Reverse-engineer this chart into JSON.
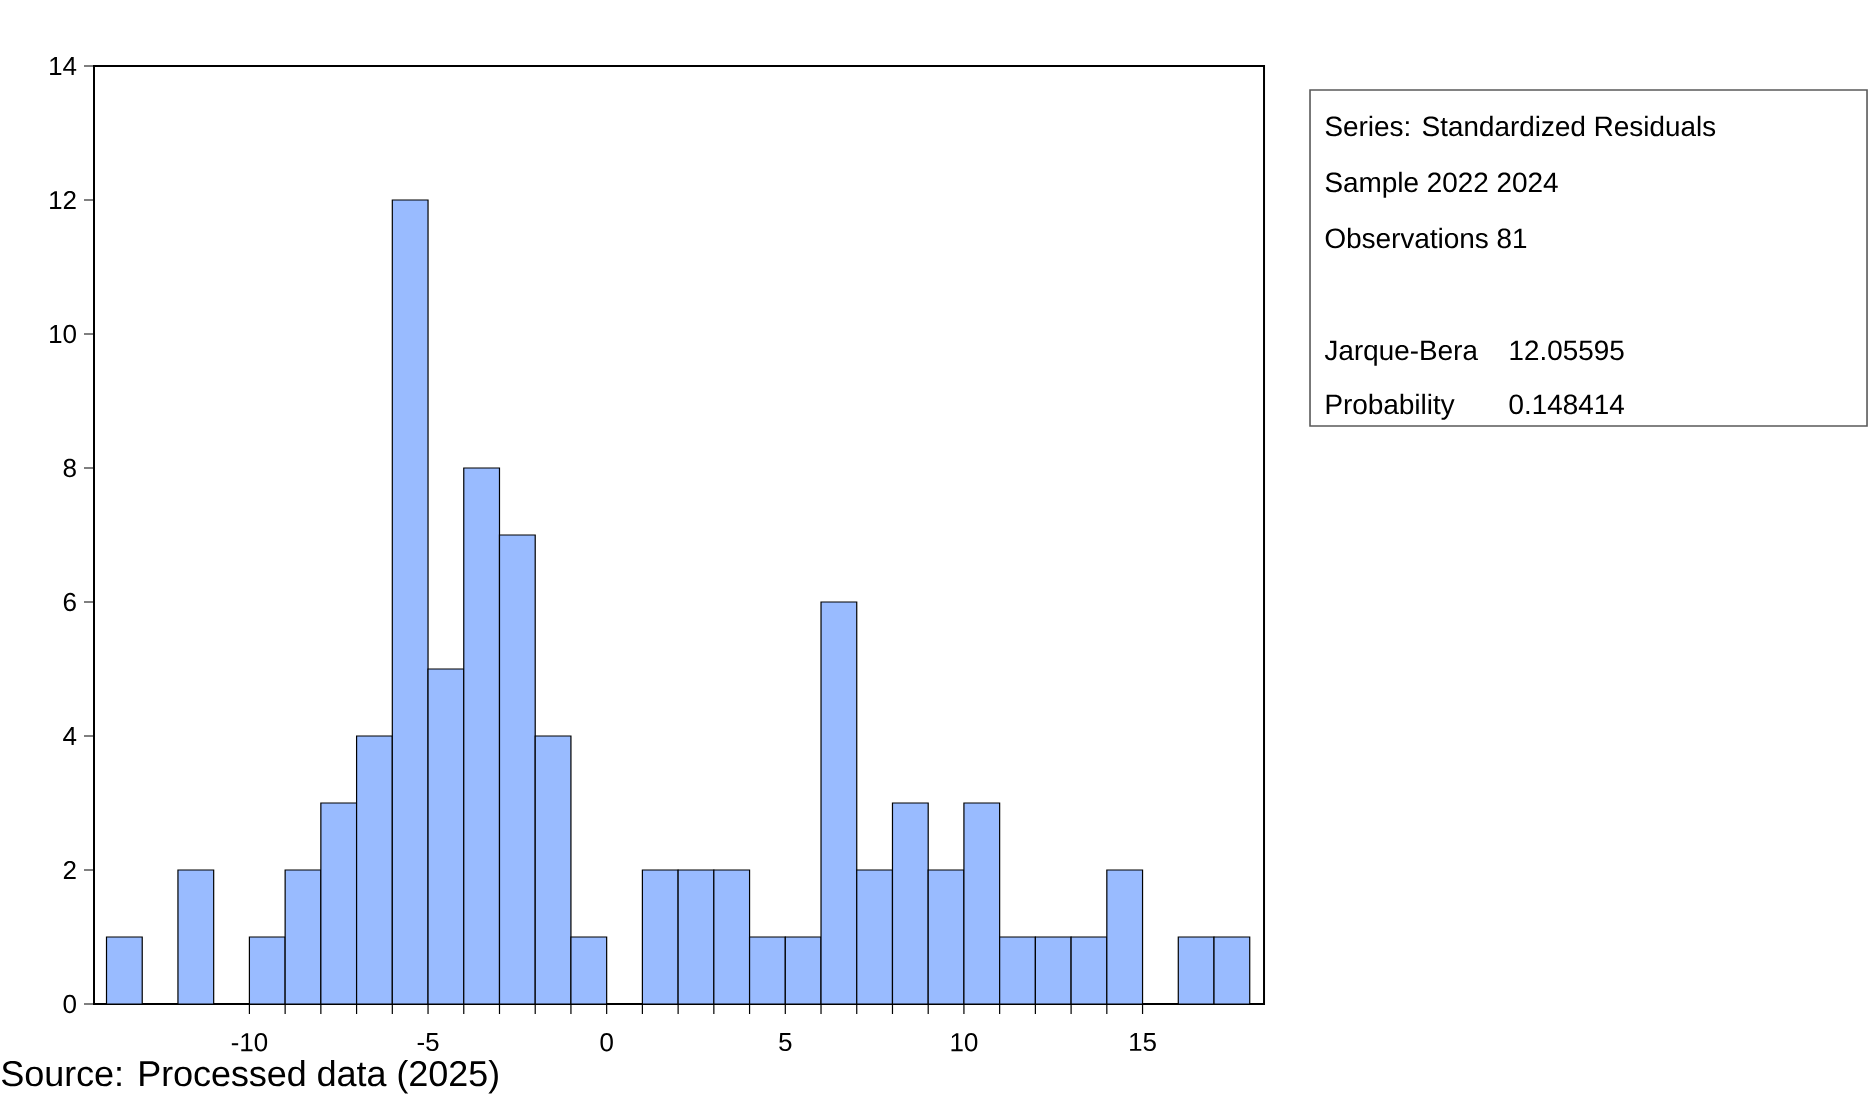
{
  "chart_data": {
    "type": "histogram",
    "bins": [
      -14,
      -13,
      -12,
      -11,
      -10,
      -9,
      -8,
      -7,
      -6,
      -5,
      -4,
      -3,
      -2,
      -1,
      0,
      1,
      2,
      3,
      4,
      5,
      6,
      7,
      8,
      9,
      10,
      11,
      12,
      13,
      14,
      15,
      16,
      17,
      18
    ],
    "values": [
      1,
      0,
      2,
      0,
      1,
      2,
      3,
      4,
      12,
      5,
      8,
      7,
      4,
      1,
      0,
      2,
      2,
      2,
      1,
      1,
      6,
      2,
      3,
      2,
      3,
      1,
      1,
      1,
      2,
      0,
      1,
      1
    ],
    "color": "#99bbff",
    "xlim": [
      -14.35,
      18.4
    ],
    "ylim": [
      0,
      14
    ],
    "xticks": [
      -10,
      -5,
      0,
      5,
      10,
      15
    ],
    "yticks": [
      0,
      2,
      4,
      6,
      8,
      10,
      12,
      14
    ],
    "annotations": [
      "Series: Standardized Residuals",
      "Sample 2022 2024",
      "Observations 81",
      "Jarque-Bera",
      "12.05595",
      "Probability",
      "0.148414",
      "Source: Processed data (2025)"
    ]
  }
}
